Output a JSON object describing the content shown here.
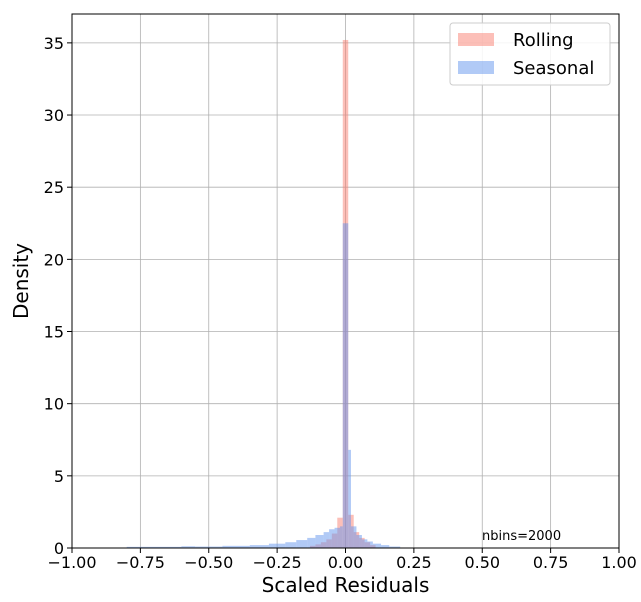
{
  "chart_data": {
    "type": "bar",
    "title": "",
    "xlabel": "Scaled Residuals",
    "ylabel": "Density",
    "xlim": [
      -1.0,
      1.0
    ],
    "ylim": [
      0,
      37
    ],
    "xticks": [
      -1.0,
      -0.75,
      -0.5,
      -0.25,
      0.0,
      0.25,
      0.5,
      0.75,
      1.0
    ],
    "xtick_labels": [
      "−1.00",
      "−0.75",
      "−0.50",
      "−0.25",
      "0.00",
      "0.25",
      "0.50",
      "0.75",
      "1.00"
    ],
    "yticks": [
      0,
      5,
      10,
      15,
      20,
      25,
      30,
      35
    ],
    "ytick_labels": [
      "0",
      "5",
      "10",
      "15",
      "20",
      "25",
      "30",
      "35"
    ],
    "grid": true,
    "legend_position": "top-right",
    "annotation": "nbins=2000",
    "series": [
      {
        "name": "Rolling",
        "color": "#fa8072",
        "bins": [
          {
            "x0": -0.13,
            "x1": -0.11,
            "value": 0.15
          },
          {
            "x0": -0.11,
            "x1": -0.09,
            "value": 0.25
          },
          {
            "x0": -0.09,
            "x1": -0.07,
            "value": 0.4
          },
          {
            "x0": -0.07,
            "x1": -0.05,
            "value": 0.6
          },
          {
            "x0": -0.05,
            "x1": -0.03,
            "value": 1.0
          },
          {
            "x0": -0.03,
            "x1": -0.01,
            "value": 2.1
          },
          {
            "x0": -0.01,
            "x1": 0.01,
            "value": 35.2
          },
          {
            "x0": 0.01,
            "x1": 0.03,
            "value": 2.3
          },
          {
            "x0": 0.03,
            "x1": 0.05,
            "value": 1.1
          },
          {
            "x0": 0.05,
            "x1": 0.07,
            "value": 0.7
          },
          {
            "x0": 0.07,
            "x1": 0.09,
            "value": 0.4
          },
          {
            "x0": 0.09,
            "x1": 0.11,
            "value": 0.2
          }
        ]
      },
      {
        "name": "Seasonal",
        "color": "#6495ed",
        "bins": [
          {
            "x0": -0.8,
            "x1": -0.6,
            "value": 0.08
          },
          {
            "x0": -0.6,
            "x1": -0.55,
            "value": 0.12
          },
          {
            "x0": -0.55,
            "x1": -0.45,
            "value": 0.1
          },
          {
            "x0": -0.45,
            "x1": -0.35,
            "value": 0.15
          },
          {
            "x0": -0.35,
            "x1": -0.28,
            "value": 0.2
          },
          {
            "x0": -0.28,
            "x1": -0.22,
            "value": 0.3
          },
          {
            "x0": -0.22,
            "x1": -0.18,
            "value": 0.4
          },
          {
            "x0": -0.18,
            "x1": -0.14,
            "value": 0.55
          },
          {
            "x0": -0.14,
            "x1": -0.11,
            "value": 0.7
          },
          {
            "x0": -0.11,
            "x1": -0.08,
            "value": 0.9
          },
          {
            "x0": -0.08,
            "x1": -0.06,
            "value": 1.1
          },
          {
            "x0": -0.06,
            "x1": -0.04,
            "value": 1.3
          },
          {
            "x0": -0.04,
            "x1": -0.02,
            "value": 1.4
          },
          {
            "x0": -0.02,
            "x1": -0.01,
            "value": 1.5
          },
          {
            "x0": -0.01,
            "x1": 0.01,
            "value": 22.5
          },
          {
            "x0": 0.01,
            "x1": 0.02,
            "value": 6.8
          },
          {
            "x0": 0.02,
            "x1": 0.04,
            "value": 1.5
          },
          {
            "x0": 0.04,
            "x1": 0.06,
            "value": 0.9
          },
          {
            "x0": 0.06,
            "x1": 0.08,
            "value": 0.6
          },
          {
            "x0": 0.08,
            "x1": 0.1,
            "value": 0.45
          },
          {
            "x0": 0.1,
            "x1": 0.13,
            "value": 0.3
          },
          {
            "x0": 0.13,
            "x1": 0.16,
            "value": 0.2
          },
          {
            "x0": 0.16,
            "x1": 0.2,
            "value": 0.1
          }
        ]
      }
    ]
  }
}
